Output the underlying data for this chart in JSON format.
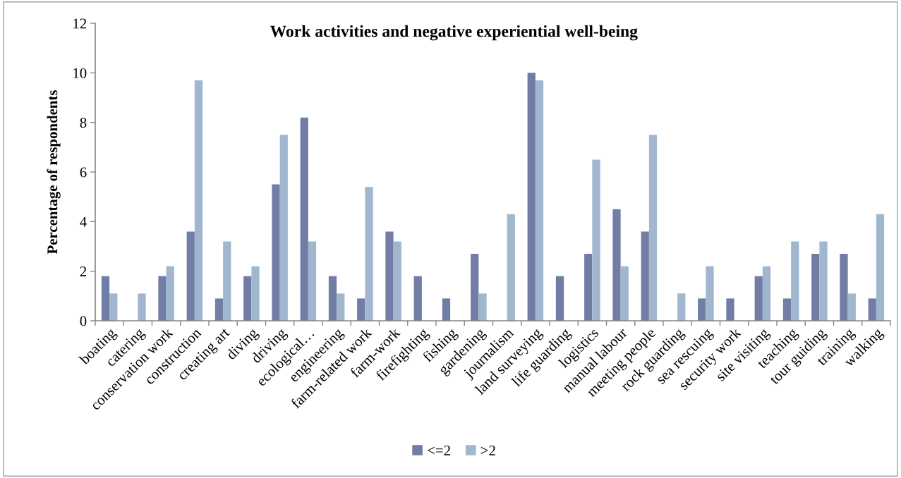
{
  "chart_data": {
    "type": "bar",
    "title": "Work activities and negative experiential well-being",
    "ylabel": "Percentage of respondents",
    "categories": [
      "boating",
      "catering",
      "conservation work",
      "construction",
      "creating art",
      "diving",
      "driving",
      "ecological…",
      "engineering",
      "farm-related work",
      "farm-work",
      "firefighting",
      "fishing",
      "gardening",
      "journalism",
      "land surveying",
      "life guarding",
      "logistics",
      "manual labour",
      "meeting people",
      "rock guarding",
      "sea rescuing",
      "security work",
      "site visiting",
      "teaching",
      "tour guiding",
      "training",
      "walking"
    ],
    "series": [
      {
        "name": "<=2",
        "color": "#727da6",
        "values": [
          1.8,
          0,
          1.8,
          3.6,
          0.9,
          1.8,
          5.5,
          8.2,
          1.8,
          0.9,
          3.6,
          1.8,
          0.9,
          2.7,
          0,
          10.0,
          1.8,
          2.7,
          4.5,
          3.6,
          0,
          0.9,
          0.9,
          1.8,
          0.9,
          2.7,
          2.7,
          0.9
        ]
      },
      {
        "name": ">2",
        "color": "#a0b7cf",
        "values": [
          1.1,
          1.1,
          2.2,
          9.7,
          3.2,
          2.2,
          7.5,
          3.2,
          1.1,
          5.4,
          3.2,
          0,
          0,
          1.1,
          4.3,
          9.7,
          0,
          6.5,
          2.2,
          7.5,
          1.1,
          2.2,
          0,
          2.2,
          3.2,
          3.2,
          1.1,
          4.3
        ]
      }
    ],
    "ylim": [
      0,
      12
    ],
    "yticks": [
      0,
      2,
      4,
      6,
      8,
      10,
      12
    ],
    "grid": false,
    "legend": "bottom"
  }
}
